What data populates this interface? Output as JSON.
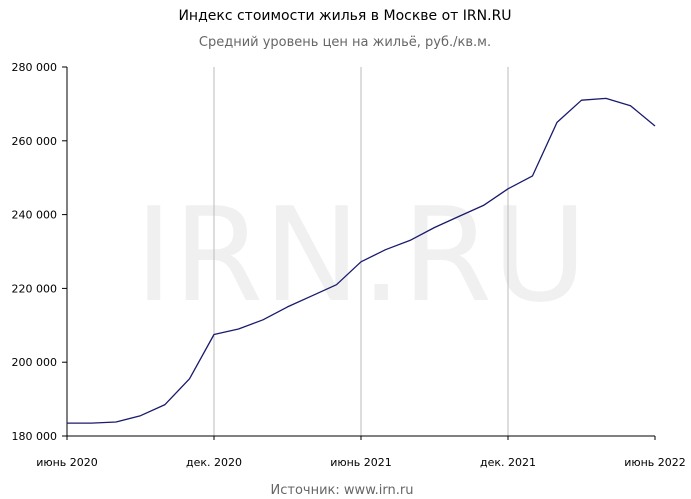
{
  "chart_data": {
    "type": "line",
    "title": "Индекс стоимости жилья в Москве от IRN.RU",
    "subtitle": "Средний уровень цен на жильё, руб./кв.м.",
    "watermark": "IRN.RU",
    "source": "Источник: www.irn.ru",
    "x": [
      "2020-06",
      "2020-07",
      "2020-08",
      "2020-09",
      "2020-10",
      "2020-11",
      "2020-12",
      "2021-01",
      "2021-02",
      "2021-03",
      "2021-04",
      "2021-05",
      "2021-06",
      "2021-07",
      "2021-08",
      "2021-09",
      "2021-10",
      "2021-11",
      "2021-12",
      "2022-01",
      "2022-02",
      "2022-03",
      "2022-04",
      "2022-05",
      "2022-06"
    ],
    "series": [
      {
        "name": "Индекс стоимости жилья",
        "color": "#1a1a6e",
        "values": [
          183500,
          183500,
          183800,
          185500,
          188500,
          195500,
          207500,
          209000,
          211500,
          215000,
          218000,
          221000,
          227200,
          230500,
          233000,
          236500,
          239500,
          242500,
          247000,
          250500,
          265000,
          271000,
          271500,
          269500,
          264000
        ]
      }
    ],
    "xticks": [
      {
        "value": "2020-06",
        "label": "июнь 2020"
      },
      {
        "value": "2020-12",
        "label": "дек. 2020"
      },
      {
        "value": "2021-06",
        "label": "июнь 2021"
      },
      {
        "value": "2021-12",
        "label": "дек. 2021"
      },
      {
        "value": "2022-06",
        "label": "июнь 2022"
      }
    ],
    "ylim": [
      180000,
      280000
    ],
    "yticks": [
      {
        "value": 180000,
        "label": "180 000"
      },
      {
        "value": 200000,
        "label": "200 000"
      },
      {
        "value": 220000,
        "label": "220 000"
      },
      {
        "value": 240000,
        "label": "240 000"
      },
      {
        "value": 260000,
        "label": "260 000"
      },
      {
        "value": 280000,
        "label": "280 000"
      }
    ],
    "grid": "x"
  }
}
